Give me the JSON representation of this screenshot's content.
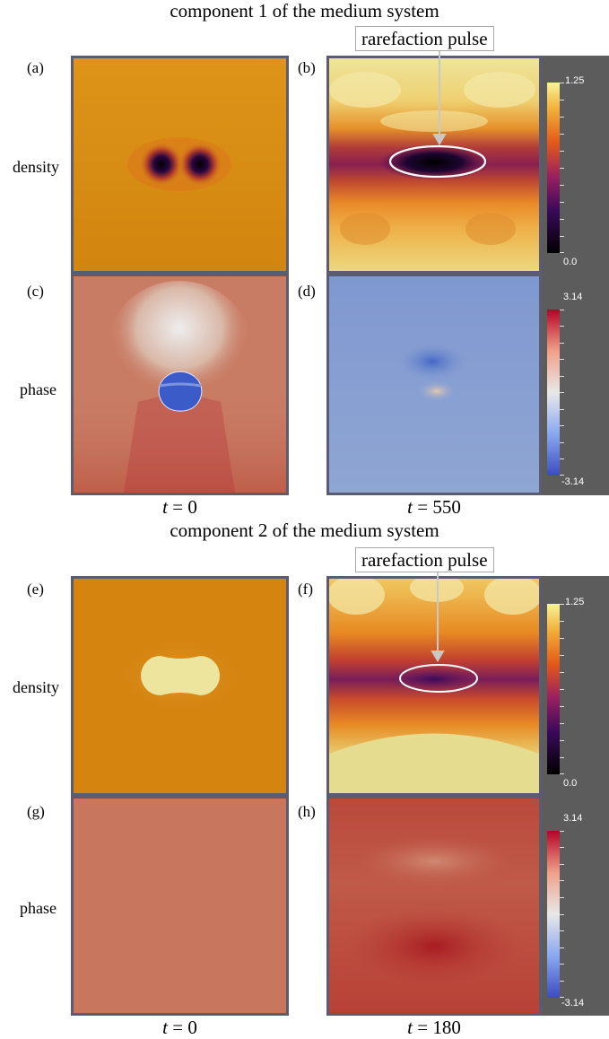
{
  "sections": [
    {
      "title": "component 1 of the medium system",
      "callout": "rarefaction pulse",
      "time_left": "0",
      "time_right": "550"
    },
    {
      "title": "component 2 of the medium system",
      "callout": "rarefaction pulse",
      "time_left": "0",
      "time_right": "180"
    }
  ],
  "time_var": "t",
  "panels": [
    "(a)",
    "(b)",
    "(c)",
    "(d)",
    "(e)",
    "(f)",
    "(g)",
    "(h)"
  ],
  "rows": {
    "density": "density",
    "phase": "phase"
  },
  "colorbars": {
    "density": {
      "max": "1.25",
      "min": "0.0"
    },
    "phase": {
      "max": "3.14",
      "min": "-3.14"
    }
  },
  "colors": {
    "frame": "#5b5b72",
    "density_bg": "#d58a15",
    "phase_bg_a": "#c87a63",
    "phase_bg_b": "#8097c9",
    "colorbar_bg": "#5c5c5c"
  }
}
